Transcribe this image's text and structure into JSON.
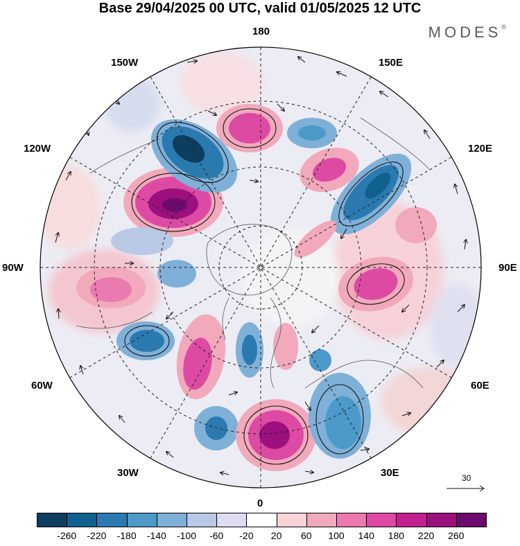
{
  "title": "Base 29/04/2025 00 UTC, valid 01/05/2025 12 UTC",
  "brand": "MODES",
  "brand_mark": "®",
  "longitude_labels": {
    "lon_180": "180",
    "lon_150e": "150E",
    "lon_120e": "120E",
    "lon_90e": "90E",
    "lon_60e": "60E",
    "lon_30e": "30E",
    "lon_0": "0",
    "lon_30w": "30W",
    "lon_60w": "60W",
    "lon_90w": "90W",
    "lon_120w": "120W",
    "lon_150w": "150W"
  },
  "reference_vector": {
    "value": "30"
  },
  "colorbar": {
    "colors": [
      "#0d3e5f",
      "#10608f",
      "#2a7ab0",
      "#4b9ac9",
      "#7fb0d8",
      "#b9c9e5",
      "#dcdef0",
      "#ffffff",
      "#f7d3d6",
      "#f1a9bb",
      "#ea7ab0",
      "#dd4aa4",
      "#c2208f",
      "#9c107e",
      "#6d0a6d"
    ],
    "tick_labels": [
      "-260",
      "-220",
      "-180",
      "-140",
      "-100",
      "-60",
      "-20",
      "20",
      "60",
      "100",
      "140",
      "180",
      "220",
      "260"
    ]
  }
}
